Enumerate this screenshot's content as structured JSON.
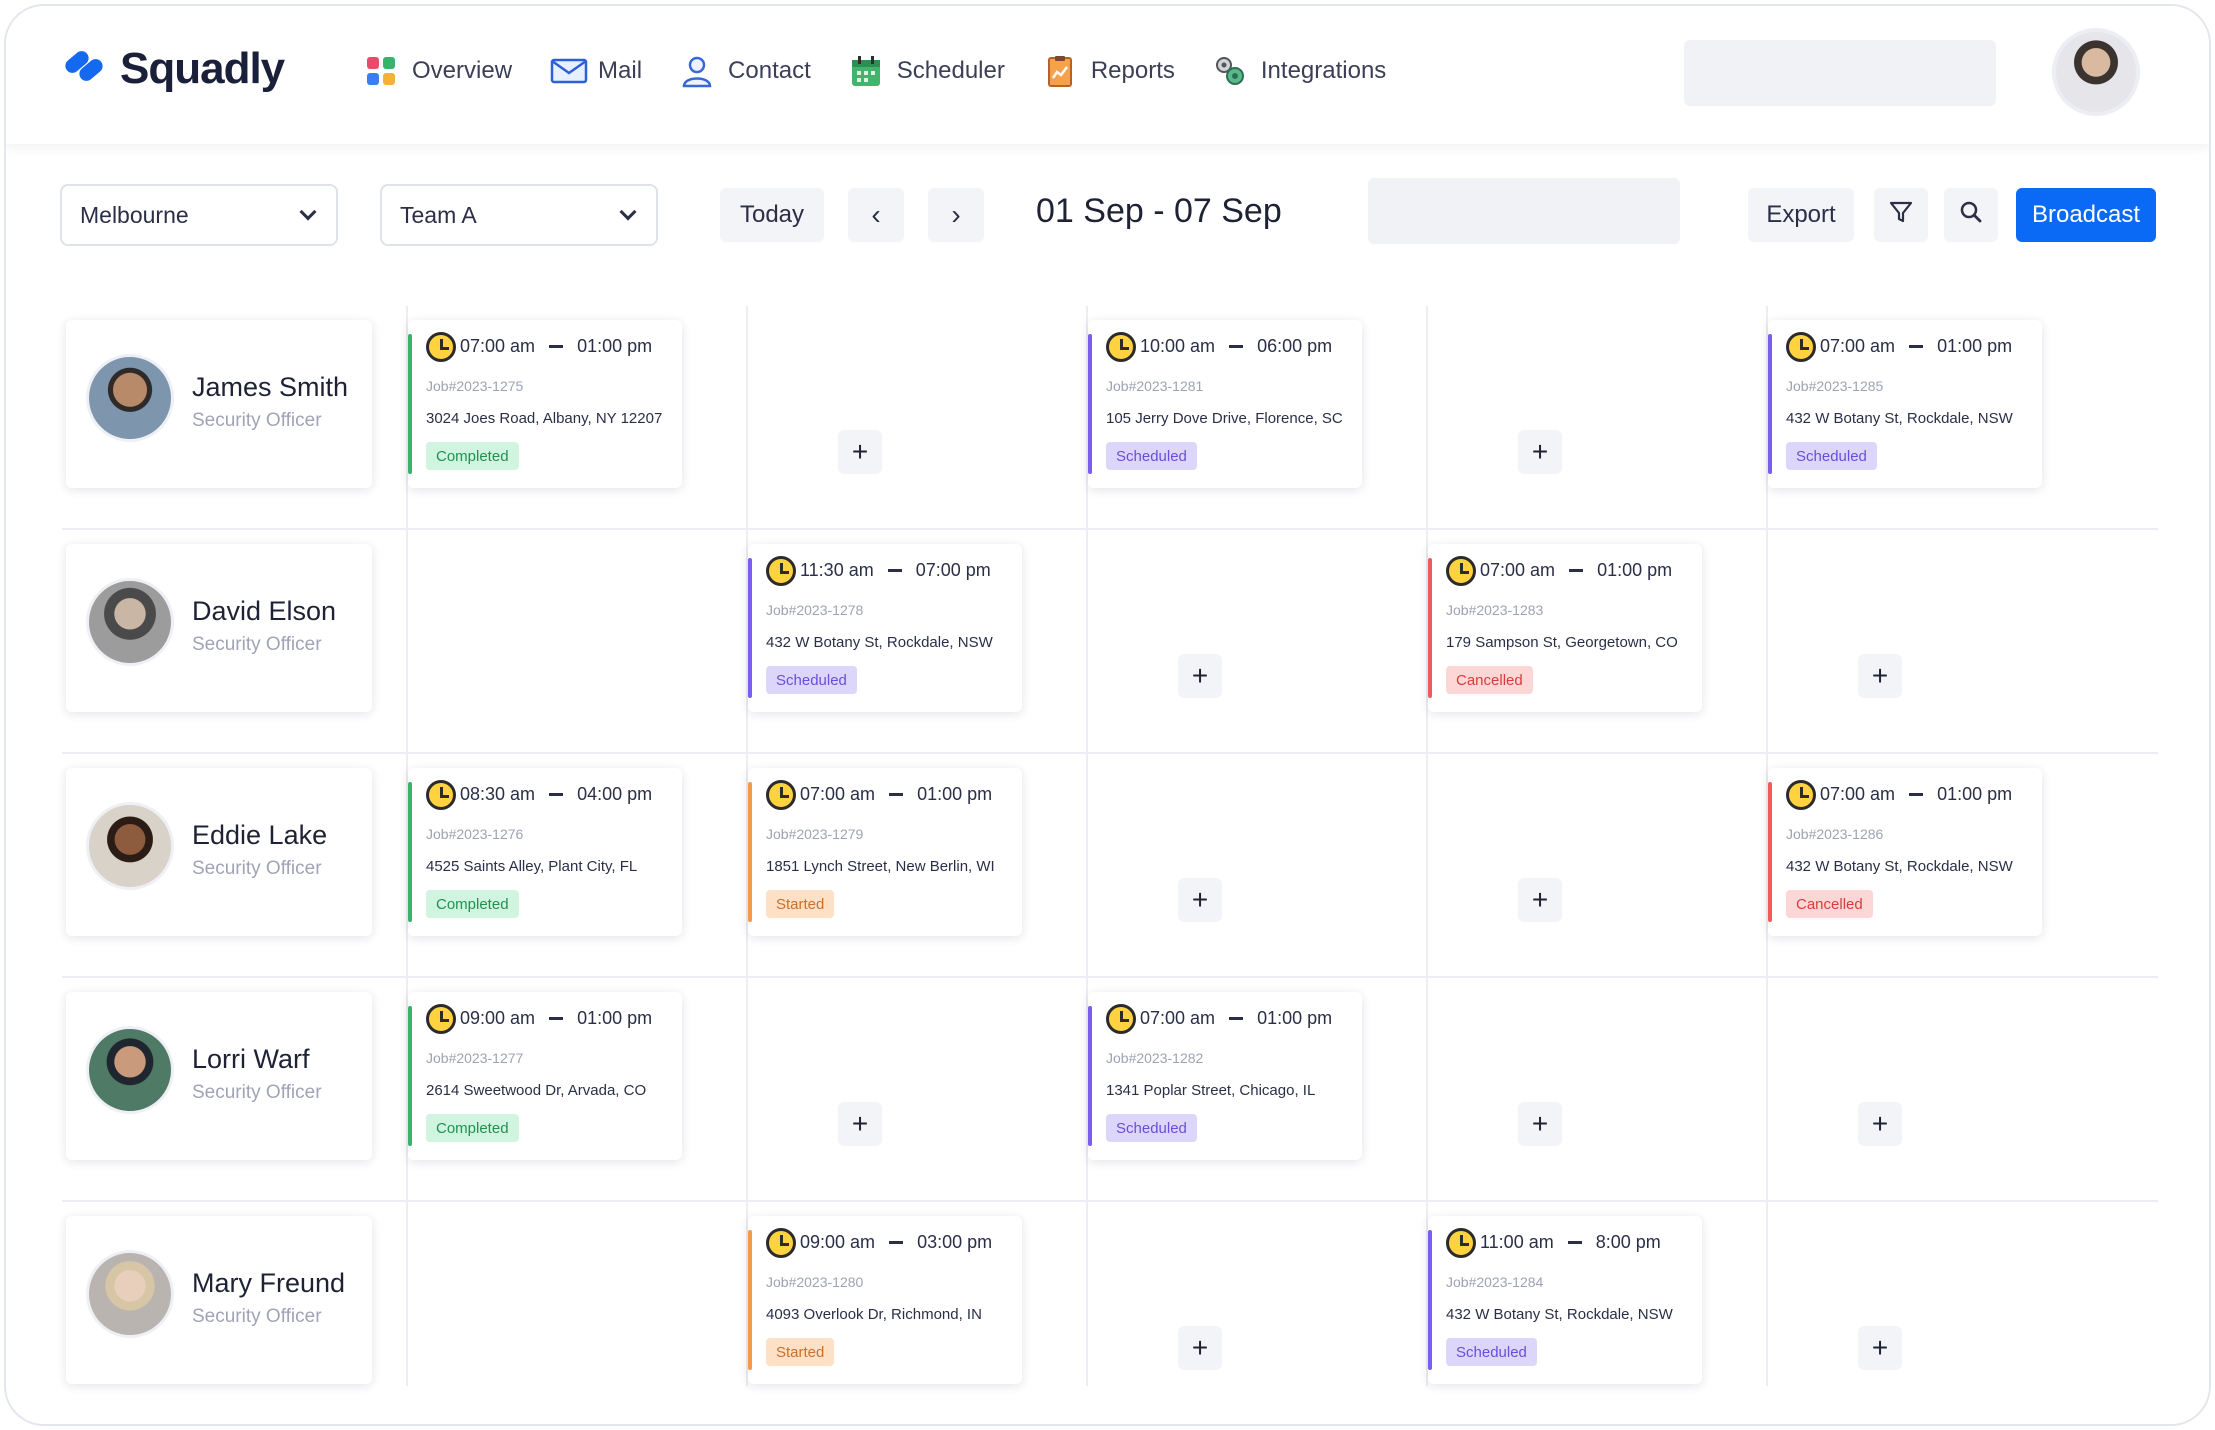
{
  "app": {
    "brand": "Squadly"
  },
  "nav": [
    {
      "label": "Overview",
      "icon": "overview-icon"
    },
    {
      "label": "Mail",
      "icon": "mail-icon"
    },
    {
      "label": "Contact",
      "icon": "contact-icon"
    },
    {
      "label": "Scheduler",
      "icon": "calendar-icon"
    },
    {
      "label": "Reports",
      "icon": "report-icon"
    },
    {
      "label": "Integrations",
      "icon": "integrations-icon"
    }
  ],
  "toolbar": {
    "location": "Melbourne",
    "team": "Team A",
    "today_label": "Today",
    "prev_label": "‹",
    "next_label": "›",
    "date_range": "01 Sep - 07 Sep",
    "export_label": "Export",
    "broadcast_label": "Broadcast"
  },
  "colors": {
    "accent": "#0b6af5",
    "completed": "#23904f",
    "scheduled": "#6a4fd8",
    "started": "#c9712a",
    "cancelled": "#d63d3d"
  },
  "employees": [
    {
      "name": "James Smith",
      "role": "Security Officer",
      "shifts": [
        {
          "day": 0,
          "start": "07:00 am",
          "end": "01:00 pm",
          "job": "Job#2023-1275",
          "address": "3024 Joes Road, Albany, NY 12207",
          "status": "Completed",
          "status_key": "completed"
        },
        {
          "day": 2,
          "start": "10:00 am",
          "end": "06:00 pm",
          "job": "Job#2023-1281",
          "address": "105 Jerry Dove Drive, Florence, SC",
          "status": "Scheduled",
          "status_key": "scheduled"
        },
        {
          "day": 4,
          "start": "07:00 am",
          "end": "01:00 pm",
          "job": "Job#2023-1285",
          "address": "432 W Botany St, Rockdale, NSW",
          "status": "Scheduled",
          "status_key": "scheduled"
        }
      ],
      "plus_days": [
        1,
        3
      ]
    },
    {
      "name": "David Elson",
      "role": "Security Officer",
      "shifts": [
        {
          "day": 1,
          "start": "11:30 am",
          "end": "07:00 pm",
          "job": "Job#2023-1278",
          "address": "432 W Botany St, Rockdale, NSW",
          "status": "Scheduled",
          "status_key": "scheduled"
        },
        {
          "day": 3,
          "start": "07:00 am",
          "end": "01:00 pm",
          "job": "Job#2023-1283",
          "address": "179 Sampson St, Georgetown, CO",
          "status": "Cancelled",
          "status_key": "cancelled"
        }
      ],
      "plus_days": [
        2,
        4
      ]
    },
    {
      "name": "Eddie Lake",
      "role": "Security Officer",
      "shifts": [
        {
          "day": 0,
          "start": "08:30 am",
          "end": "04:00 pm",
          "job": "Job#2023-1276",
          "address": "4525 Saints Alley, Plant City, FL",
          "status": "Completed",
          "status_key": "completed"
        },
        {
          "day": 1,
          "start": "07:00 am",
          "end": "01:00 pm",
          "job": "Job#2023-1279",
          "address": "1851 Lynch Street, New Berlin, WI",
          "status": "Started",
          "status_key": "started"
        },
        {
          "day": 4,
          "start": "07:00 am",
          "end": "01:00 pm",
          "job": "Job#2023-1286",
          "address": "432 W Botany St, Rockdale, NSW",
          "status": "Cancelled",
          "status_key": "cancelled"
        }
      ],
      "plus_days": [
        2,
        3
      ]
    },
    {
      "name": "Lorri Warf",
      "role": "Security Officer",
      "shifts": [
        {
          "day": 0,
          "start": "09:00 am",
          "end": "01:00 pm",
          "job": "Job#2023-1277",
          "address": "2614 Sweetwood Dr, Arvada, CO",
          "status": "Completed",
          "status_key": "completed"
        },
        {
          "day": 2,
          "start": "07:00 am",
          "end": "01:00 pm",
          "job": "Job#2023-1282",
          "address": "1341 Poplar Street, Chicago, IL",
          "status": "Scheduled",
          "status_key": "scheduled"
        }
      ],
      "plus_days": [
        1,
        3,
        4
      ]
    },
    {
      "name": "Mary Freund",
      "role": "Security Officer",
      "shifts": [
        {
          "day": 1,
          "start": "09:00 am",
          "end": "03:00 pm",
          "job": "Job#2023-1280",
          "address": "4093 Overlook Dr, Richmond, IN",
          "status": "Started",
          "status_key": "started"
        },
        {
          "day": 3,
          "start": "11:00 am",
          "end": "8:00 pm",
          "job": "Job#2023-1284",
          "address": "432 W Botany St, Rockdale, NSW",
          "status": "Scheduled",
          "status_key": "scheduled"
        }
      ],
      "plus_days": [
        2,
        4
      ]
    }
  ]
}
